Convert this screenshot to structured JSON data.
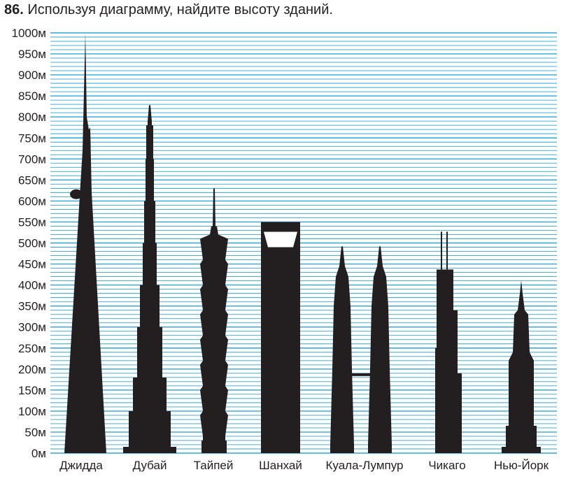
{
  "task": {
    "number": "86.",
    "text": "Используя диаграмму, найдите высоту зданий."
  },
  "colors": {
    "gridline": "#2aa7de",
    "building": "#231f20",
    "text": "#231f20",
    "background": "#ffffff"
  },
  "chart_data": {
    "type": "bar",
    "unit": "м",
    "ylim": [
      0,
      1000
    ],
    "y_ticks": [
      0,
      50,
      100,
      150,
      200,
      250,
      300,
      350,
      400,
      450,
      500,
      550,
      600,
      650,
      700,
      750,
      800,
      850,
      900,
      950,
      1000
    ],
    "y_tick_labels": [
      "0м",
      "50м",
      "100м",
      "150м",
      "200м",
      "250м",
      "300м",
      "350м",
      "400м",
      "450м",
      "500м",
      "550м",
      "600м",
      "650м",
      "700м",
      "750м",
      "800м",
      "850м",
      "900м",
      "950м",
      "1000м"
    ],
    "minor_grid_step": 10,
    "grid": true,
    "categories": [
      "Джидда",
      "Дубай",
      "Тайпей",
      "Шанхай",
      "Куала-Лумпур",
      "Чикаго",
      "Нью-Йорк"
    ],
    "values": [
      1000,
      828,
      508,
      492,
      452,
      442,
      381
    ],
    "roof_values": [
      1000,
      828,
      508,
      492,
      452,
      442,
      381
    ],
    "spire_values": [
      1000,
      828,
      508,
      492,
      452,
      442,
      381
    ]
  }
}
